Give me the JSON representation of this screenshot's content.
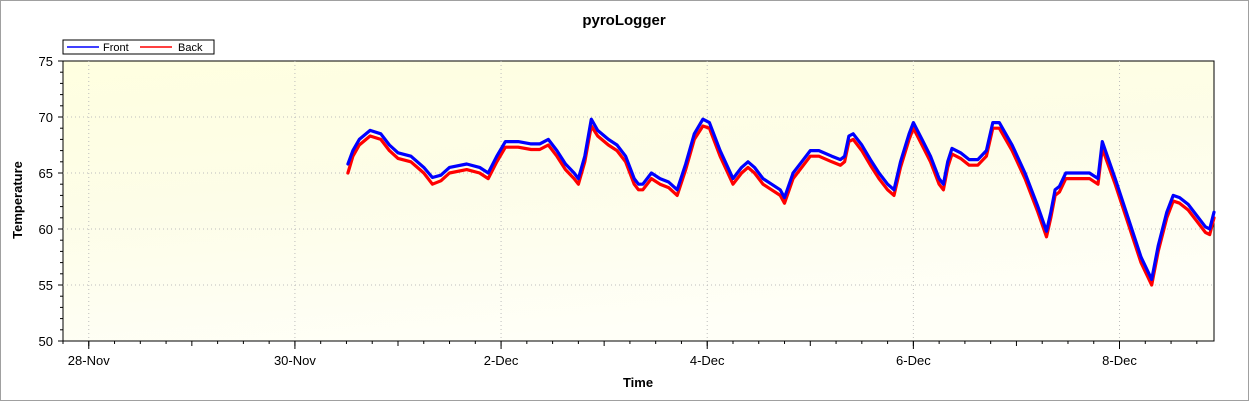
{
  "chart_data": {
    "type": "line",
    "title": "pyroLogger",
    "xlabel": "Time",
    "ylabel": "Temperature",
    "ylim": [
      50,
      75
    ],
    "yticks": [
      50,
      55,
      60,
      65,
      70,
      75
    ],
    "xlim": [
      "2023-11-27T18:00",
      "2023-12-08T22:00"
    ],
    "xticks": [
      {
        "date": "2023-11-28",
        "label": "28-Nov"
      },
      {
        "date": "2023-11-30",
        "label": "30-Nov"
      },
      {
        "date": "2023-12-02",
        "label": "2-Dec"
      },
      {
        "date": "2023-12-04",
        "label": "4-Dec"
      },
      {
        "date": "2023-12-06",
        "label": "6-Dec"
      },
      {
        "date": "2023-12-08",
        "label": "8-Dec"
      }
    ],
    "grid": true,
    "legend": "top-left",
    "series": [
      {
        "name": "Front",
        "color": "#0000ff",
        "points": [
          [
            "2023-11-30T12:20",
            65.8
          ],
          [
            "2023-11-30T13:30",
            67.0
          ],
          [
            "2023-11-30T15:00",
            68.0
          ],
          [
            "2023-11-30T17:30",
            68.8
          ],
          [
            "2023-11-30T20:00",
            68.5
          ],
          [
            "2023-11-30T22:00",
            67.5
          ],
          [
            "2023-12-01T00:00",
            66.8
          ],
          [
            "2023-12-01T03:00",
            66.5
          ],
          [
            "2023-12-01T06:00",
            65.5
          ],
          [
            "2023-12-01T08:00",
            64.6
          ],
          [
            "2023-12-01T10:00",
            64.8
          ],
          [
            "2023-12-01T12:00",
            65.5
          ],
          [
            "2023-12-01T16:00",
            65.8
          ],
          [
            "2023-12-01T19:00",
            65.5
          ],
          [
            "2023-12-01T21:00",
            65.0
          ],
          [
            "2023-12-01T23:00",
            66.5
          ],
          [
            "2023-12-02T01:00",
            67.8
          ],
          [
            "2023-12-02T04:00",
            67.8
          ],
          [
            "2023-12-02T07:00",
            67.6
          ],
          [
            "2023-12-02T09:00",
            67.6
          ],
          [
            "2023-12-02T11:00",
            68.0
          ],
          [
            "2023-12-02T13:00",
            67.0
          ],
          [
            "2023-12-02T15:00",
            65.8
          ],
          [
            "2023-12-02T17:00",
            65.0
          ],
          [
            "2023-12-02T18:00",
            64.5
          ],
          [
            "2023-12-02T19:30",
            66.5
          ],
          [
            "2023-12-02T21:00",
            69.8
          ],
          [
            "2023-12-02T22:30",
            68.8
          ],
          [
            "2023-12-03T01:00",
            68.0
          ],
          [
            "2023-12-03T03:00",
            67.5
          ],
          [
            "2023-12-03T05:00",
            66.5
          ],
          [
            "2023-12-03T07:00",
            64.5
          ],
          [
            "2023-12-03T08:00",
            64.0
          ],
          [
            "2023-12-03T09:00",
            64.0
          ],
          [
            "2023-12-03T11:00",
            65.0
          ],
          [
            "2023-12-03T13:00",
            64.5
          ],
          [
            "2023-12-03T15:00",
            64.2
          ],
          [
            "2023-12-03T17:00",
            63.5
          ],
          [
            "2023-12-03T19:00",
            65.8
          ],
          [
            "2023-12-03T21:00",
            68.5
          ],
          [
            "2023-12-03T23:00",
            69.8
          ],
          [
            "2023-12-04T00:30",
            69.5
          ],
          [
            "2023-12-04T03:00",
            67.0
          ],
          [
            "2023-12-04T06:00",
            64.5
          ],
          [
            "2023-12-04T08:00",
            65.5
          ],
          [
            "2023-12-04T09:30",
            66.0
          ],
          [
            "2023-12-04T11:00",
            65.5
          ],
          [
            "2023-12-04T13:00",
            64.5
          ],
          [
            "2023-12-04T15:00",
            64.0
          ],
          [
            "2023-12-04T17:00",
            63.5
          ],
          [
            "2023-12-04T18:00",
            62.8
          ],
          [
            "2023-12-04T20:00",
            65.0
          ],
          [
            "2023-12-04T22:00",
            66.0
          ],
          [
            "2023-12-05T00:00",
            67.0
          ],
          [
            "2023-12-05T02:00",
            67.0
          ],
          [
            "2023-12-05T05:00",
            66.5
          ],
          [
            "2023-12-05T07:00",
            66.2
          ],
          [
            "2023-12-05T08:00",
            66.5
          ],
          [
            "2023-12-05T09:00",
            68.3
          ],
          [
            "2023-12-05T10:00",
            68.5
          ],
          [
            "2023-12-05T12:00",
            67.5
          ],
          [
            "2023-12-05T14:00",
            66.2
          ],
          [
            "2023-12-05T16:00",
            65.0
          ],
          [
            "2023-12-05T18:00",
            64.0
          ],
          [
            "2023-12-05T19:30",
            63.5
          ],
          [
            "2023-12-05T21:00",
            66.0
          ],
          [
            "2023-12-05T23:00",
            68.5
          ],
          [
            "2023-12-06T00:00",
            69.5
          ],
          [
            "2023-12-06T02:00",
            68.0
          ],
          [
            "2023-12-06T04:00",
            66.5
          ],
          [
            "2023-12-06T06:00",
            64.5
          ],
          [
            "2023-12-06T07:00",
            64.0
          ],
          [
            "2023-12-06T08:00",
            66.0
          ],
          [
            "2023-12-06T09:00",
            67.2
          ],
          [
            "2023-12-06T11:00",
            66.8
          ],
          [
            "2023-12-06T13:00",
            66.2
          ],
          [
            "2023-12-06T15:00",
            66.2
          ],
          [
            "2023-12-06T17:00",
            67.0
          ],
          [
            "2023-12-06T18:30",
            69.5
          ],
          [
            "2023-12-06T20:00",
            69.5
          ],
          [
            "2023-12-06T23:00",
            67.5
          ],
          [
            "2023-12-07T02:00",
            65.0
          ],
          [
            "2023-12-07T05:00",
            62.0
          ],
          [
            "2023-12-07T07:00",
            59.8
          ],
          [
            "2023-12-07T08:00",
            61.5
          ],
          [
            "2023-12-07T09:00",
            63.5
          ],
          [
            "2023-12-07T10:00",
            63.8
          ],
          [
            "2023-12-07T11:30",
            65.0
          ],
          [
            "2023-12-07T14:00",
            65.0
          ],
          [
            "2023-12-07T17:00",
            65.0
          ],
          [
            "2023-12-07T19:00",
            64.5
          ],
          [
            "2023-12-07T20:00",
            67.8
          ],
          [
            "2023-12-07T23:00",
            64.5
          ],
          [
            "2023-12-08T02:00",
            61.0
          ],
          [
            "2023-12-08T05:00",
            57.5
          ],
          [
            "2023-12-08T07:30",
            55.5
          ],
          [
            "2023-12-08T09:00",
            58.5
          ],
          [
            "2023-12-08T11:00",
            61.5
          ],
          [
            "2023-12-08T12:30",
            63.0
          ],
          [
            "2023-12-08T14:00",
            62.8
          ],
          [
            "2023-12-08T16:00",
            62.2
          ],
          [
            "2023-12-08T18:00",
            61.2
          ],
          [
            "2023-12-08T20:00",
            60.2
          ],
          [
            "2023-12-08T21:00",
            60.0
          ],
          [
            "2023-12-08T22:00",
            61.5
          ]
        ]
      },
      {
        "name": "Back",
        "color": "#ff0000",
        "points": [
          [
            "2023-11-30T12:20",
            65.0
          ],
          [
            "2023-11-30T13:30",
            66.5
          ],
          [
            "2023-11-30T15:00",
            67.5
          ],
          [
            "2023-11-30T17:30",
            68.3
          ],
          [
            "2023-11-30T20:00",
            68.0
          ],
          [
            "2023-11-30T22:00",
            67.0
          ],
          [
            "2023-12-01T00:00",
            66.3
          ],
          [
            "2023-12-01T03:00",
            66.0
          ],
          [
            "2023-12-01T06:00",
            65.0
          ],
          [
            "2023-12-01T08:00",
            64.0
          ],
          [
            "2023-12-01T10:00",
            64.3
          ],
          [
            "2023-12-01T12:00",
            65.0
          ],
          [
            "2023-12-01T16:00",
            65.3
          ],
          [
            "2023-12-01T19:00",
            65.0
          ],
          [
            "2023-12-01T21:00",
            64.5
          ],
          [
            "2023-12-01T23:00",
            66.0
          ],
          [
            "2023-12-02T01:00",
            67.3
          ],
          [
            "2023-12-02T04:00",
            67.3
          ],
          [
            "2023-12-02T07:00",
            67.1
          ],
          [
            "2023-12-02T09:00",
            67.1
          ],
          [
            "2023-12-02T11:00",
            67.5
          ],
          [
            "2023-12-02T13:00",
            66.5
          ],
          [
            "2023-12-02T15:00",
            65.3
          ],
          [
            "2023-12-02T17:00",
            64.5
          ],
          [
            "2023-12-02T18:00",
            64.0
          ],
          [
            "2023-12-02T19:30",
            66.0
          ],
          [
            "2023-12-02T21:00",
            69.2
          ],
          [
            "2023-12-02T22:30",
            68.3
          ],
          [
            "2023-12-03T01:00",
            67.5
          ],
          [
            "2023-12-03T03:00",
            67.0
          ],
          [
            "2023-12-03T05:00",
            66.0
          ],
          [
            "2023-12-03T07:00",
            64.0
          ],
          [
            "2023-12-03T08:00",
            63.5
          ],
          [
            "2023-12-03T09:00",
            63.5
          ],
          [
            "2023-12-03T11:00",
            64.5
          ],
          [
            "2023-12-03T13:00",
            64.0
          ],
          [
            "2023-12-03T15:00",
            63.7
          ],
          [
            "2023-12-03T17:00",
            63.0
          ],
          [
            "2023-12-03T19:00",
            65.3
          ],
          [
            "2023-12-03T21:00",
            68.0
          ],
          [
            "2023-12-03T23:00",
            69.2
          ],
          [
            "2023-12-04T00:30",
            69.0
          ],
          [
            "2023-12-04T03:00",
            66.5
          ],
          [
            "2023-12-04T06:00",
            64.0
          ],
          [
            "2023-12-04T08:00",
            65.0
          ],
          [
            "2023-12-04T09:30",
            65.5
          ],
          [
            "2023-12-04T11:00",
            65.0
          ],
          [
            "2023-12-04T13:00",
            64.0
          ],
          [
            "2023-12-04T15:00",
            63.5
          ],
          [
            "2023-12-04T17:00",
            63.0
          ],
          [
            "2023-12-04T18:00",
            62.3
          ],
          [
            "2023-12-04T20:00",
            64.5
          ],
          [
            "2023-12-04T22:00",
            65.5
          ],
          [
            "2023-12-05T00:00",
            66.5
          ],
          [
            "2023-12-05T02:00",
            66.5
          ],
          [
            "2023-12-05T05:00",
            66.0
          ],
          [
            "2023-12-05T07:00",
            65.7
          ],
          [
            "2023-12-05T08:00",
            66.0
          ],
          [
            "2023-12-05T09:00",
            67.8
          ],
          [
            "2023-12-05T10:00",
            68.0
          ],
          [
            "2023-12-05T12:00",
            67.0
          ],
          [
            "2023-12-05T14:00",
            65.7
          ],
          [
            "2023-12-05T16:00",
            64.5
          ],
          [
            "2023-12-05T18:00",
            63.5
          ],
          [
            "2023-12-05T19:30",
            63.0
          ],
          [
            "2023-12-05T21:00",
            65.5
          ],
          [
            "2023-12-05T23:00",
            68.0
          ],
          [
            "2023-12-06T00:00",
            69.0
          ],
          [
            "2023-12-06T02:00",
            67.5
          ],
          [
            "2023-12-06T04:00",
            66.0
          ],
          [
            "2023-12-06T06:00",
            64.0
          ],
          [
            "2023-12-06T07:00",
            63.5
          ],
          [
            "2023-12-06T08:00",
            65.5
          ],
          [
            "2023-12-06T09:00",
            66.7
          ],
          [
            "2023-12-06T11:00",
            66.3
          ],
          [
            "2023-12-06T13:00",
            65.7
          ],
          [
            "2023-12-06T15:00",
            65.7
          ],
          [
            "2023-12-06T17:00",
            66.5
          ],
          [
            "2023-12-06T18:30",
            69.0
          ],
          [
            "2023-12-06T20:00",
            69.0
          ],
          [
            "2023-12-06T23:00",
            67.0
          ],
          [
            "2023-12-07T02:00",
            64.5
          ],
          [
            "2023-12-07T05:00",
            61.5
          ],
          [
            "2023-12-07T07:00",
            59.3
          ],
          [
            "2023-12-07T08:00",
            61.0
          ],
          [
            "2023-12-07T09:00",
            63.0
          ],
          [
            "2023-12-07T10:00",
            63.3
          ],
          [
            "2023-12-07T11:30",
            64.5
          ],
          [
            "2023-12-07T14:00",
            64.5
          ],
          [
            "2023-12-07T17:00",
            64.5
          ],
          [
            "2023-12-07T19:00",
            64.0
          ],
          [
            "2023-12-07T20:00",
            67.2
          ],
          [
            "2023-12-07T23:00",
            64.0
          ],
          [
            "2023-12-08T02:00",
            60.5
          ],
          [
            "2023-12-08T05:00",
            57.0
          ],
          [
            "2023-12-08T07:30",
            55.0
          ],
          [
            "2023-12-08T09:00",
            58.0
          ],
          [
            "2023-12-08T11:00",
            61.0
          ],
          [
            "2023-12-08T12:30",
            62.5
          ],
          [
            "2023-12-08T14:00",
            62.3
          ],
          [
            "2023-12-08T16:00",
            61.7
          ],
          [
            "2023-12-08T18:00",
            60.7
          ],
          [
            "2023-12-08T20:00",
            59.7
          ],
          [
            "2023-12-08T21:00",
            59.5
          ],
          [
            "2023-12-08T22:00",
            61.0
          ]
        ]
      }
    ]
  }
}
